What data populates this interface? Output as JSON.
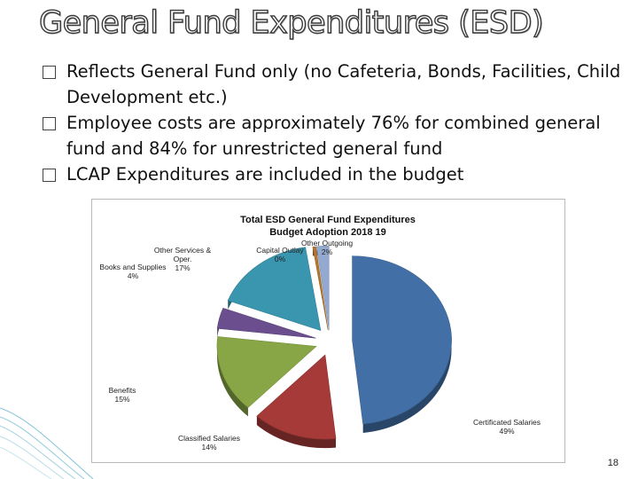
{
  "slide": {
    "title": "General Fund Expenditures (ESD)",
    "bullets": [
      "Reflects General Fund only (no Cafeteria, Bonds, Facilities, Child Development etc.)",
      "Employee costs are approximately 76% for combined general fund and 84% for unrestricted general fund",
      "LCAP Expenditures are included in the budget"
    ],
    "page_number": "18"
  },
  "chart_data": {
    "type": "pie",
    "title": "Total ESD General Fund Expenditures",
    "subtitle": "Budget Adoption 2018 19",
    "slices": [
      {
        "name": "Certificated Salaries",
        "value": 49,
        "display": "49%",
        "color": "#4270a6"
      },
      {
        "name": "Classified Salaries",
        "value": 14,
        "display": "14%",
        "color": "#a53a38"
      },
      {
        "name": "Benefits",
        "value": 15,
        "display": "15%",
        "color": "#88a645"
      },
      {
        "name": "Books and Supplies",
        "value": 4,
        "display": "4%",
        "color": "#6a4e8e"
      },
      {
        "name": "Other Services & Oper.",
        "value": 17,
        "display": "17%",
        "color": "#3a96ae"
      },
      {
        "name": "Capital Outlay",
        "value": 0.5,
        "display": "0%",
        "color": "#b5762e"
      },
      {
        "name": "Other Outgoing",
        "value": 2,
        "display": "2%",
        "color": "#93a9cf"
      }
    ],
    "style": "3d-exploded"
  }
}
